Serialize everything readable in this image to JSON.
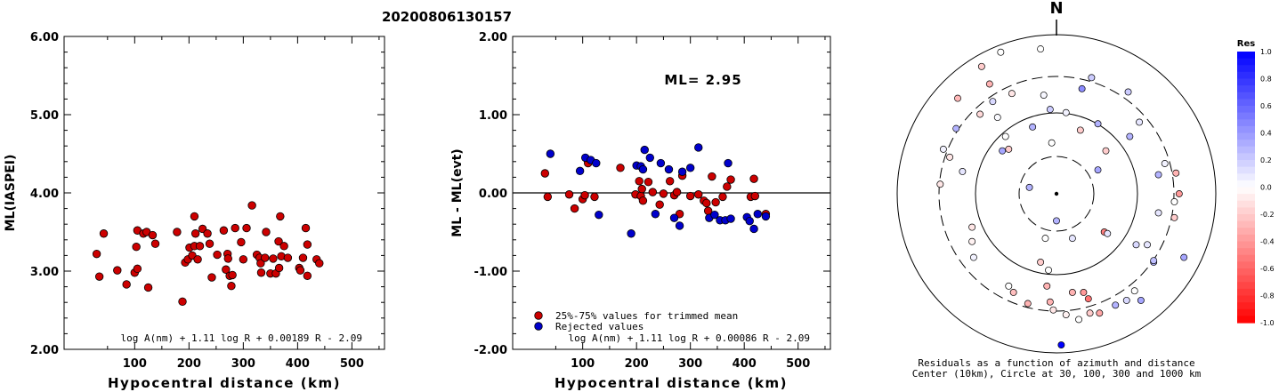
{
  "title": "20200806130157",
  "colors": {
    "trimmed": "#cc0000",
    "rejected": "#0000cc"
  },
  "chart_data": [
    {
      "type": "scatter",
      "id": "ml-vs-distance",
      "ylabel": "ML(IASPEI)",
      "xlabel": "Hypocentral distance (km)",
      "xlim": [
        -30,
        560
      ],
      "ylim": [
        2.0,
        6.0
      ],
      "x_ticks": [
        "100",
        "200",
        "300",
        "400",
        "500"
      ],
      "y_ticks": [
        "2.00",
        "3.00",
        "4.00",
        "5.00",
        "6.00"
      ],
      "formula": "log A(nm) + 1.11 log R + 0.00189 R - 2.09",
      "points": [
        [
          30,
          3.22
        ],
        [
          35,
          2.93
        ],
        [
          43,
          3.48
        ],
        [
          68,
          3.01
        ],
        [
          85,
          2.83
        ],
        [
          100,
          2.98
        ],
        [
          103,
          3.31
        ],
        [
          105,
          3.03
        ],
        [
          105,
          3.52
        ],
        [
          116,
          3.48
        ],
        [
          122,
          3.5
        ],
        [
          125,
          2.79
        ],
        [
          133,
          3.46
        ],
        [
          138,
          3.35
        ],
        [
          178,
          3.5
        ],
        [
          188,
          2.61
        ],
        [
          193,
          3.11
        ],
        [
          198,
          3.15
        ],
        [
          201,
          3.3
        ],
        [
          206,
          3.2
        ],
        [
          210,
          3.32
        ],
        [
          210,
          3.7
        ],
        [
          212,
          3.48
        ],
        [
          216,
          3.15
        ],
        [
          220,
          3.32
        ],
        [
          225,
          3.54
        ],
        [
          234,
          3.48
        ],
        [
          238,
          3.35
        ],
        [
          242,
          2.92
        ],
        [
          252,
          3.21
        ],
        [
          264,
          3.52
        ],
        [
          268,
          3.02
        ],
        [
          271,
          3.22
        ],
        [
          272,
          3.16
        ],
        [
          275,
          2.94
        ],
        [
          278,
          2.81
        ],
        [
          280,
          2.95
        ],
        [
          285,
          3.55
        ],
        [
          296,
          3.37
        ],
        [
          300,
          3.15
        ],
        [
          306,
          3.55
        ],
        [
          316,
          3.84
        ],
        [
          325,
          3.21
        ],
        [
          330,
          3.17
        ],
        [
          332,
          3.1
        ],
        [
          333,
          2.98
        ],
        [
          340,
          3.17
        ],
        [
          342,
          3.5
        ],
        [
          350,
          2.97
        ],
        [
          355,
          3.16
        ],
        [
          360,
          2.97
        ],
        [
          365,
          3.38
        ],
        [
          366,
          3.04
        ],
        [
          368,
          3.7
        ],
        [
          370,
          3.19
        ],
        [
          375,
          3.32
        ],
        [
          382,
          3.17
        ],
        [
          403,
          3.04
        ],
        [
          405,
          3.01
        ],
        [
          410,
          3.17
        ],
        [
          415,
          3.55
        ],
        [
          418,
          3.34
        ],
        [
          418,
          2.94
        ],
        [
          435,
          3.15
        ],
        [
          440,
          3.1
        ]
      ]
    },
    {
      "type": "scatter",
      "id": "residual-vs-distance",
      "ylabel": "ML - ML(evt)",
      "xlabel": "Hypocentral distance (km)",
      "xlim": [
        -30,
        560
      ],
      "ylim": [
        -2.0,
        2.0
      ],
      "x_ticks": [
        "100",
        "200",
        "300",
        "400",
        "500"
      ],
      "y_ticks": [
        "-2.00",
        "-1.00",
        "0.00",
        "1.00",
        "2.00"
      ],
      "annotation": "ML= 2.95",
      "legend": [
        "25%-75% values for trimmed mean",
        "Rejected values"
      ],
      "formula": "log A(nm) + 1.11 log R + 0.00086 R - 2.09",
      "trimmed": [
        [
          30,
          0.25
        ],
        [
          35,
          -0.05
        ],
        [
          75,
          -0.02
        ],
        [
          85,
          -0.2
        ],
        [
          100,
          -0.08
        ],
        [
          104,
          -0.03
        ],
        [
          110,
          0.38
        ],
        [
          122,
          -0.05
        ],
        [
          170,
          0.32
        ],
        [
          198,
          -0.02
        ],
        [
          205,
          0.15
        ],
        [
          208,
          -0.04
        ],
        [
          210,
          0.05
        ],
        [
          212,
          -0.1
        ],
        [
          222,
          0.14
        ],
        [
          230,
          0.01
        ],
        [
          243,
          -0.15
        ],
        [
          250,
          -0.01
        ],
        [
          262,
          0.15
        ],
        [
          270,
          -0.03
        ],
        [
          275,
          0.01
        ],
        [
          280,
          -0.27
        ],
        [
          285,
          0.22
        ],
        [
          300,
          -0.04
        ],
        [
          315,
          -0.02
        ],
        [
          325,
          -0.1
        ],
        [
          330,
          -0.13
        ],
        [
          333,
          -0.23
        ],
        [
          340,
          0.21
        ],
        [
          347,
          -0.12
        ],
        [
          360,
          -0.05
        ],
        [
          368,
          0.08
        ],
        [
          375,
          0.17
        ],
        [
          412,
          -0.05
        ],
        [
          418,
          0.18
        ],
        [
          420,
          -0.04
        ],
        [
          440,
          -0.27
        ]
      ],
      "rejected": [
        [
          40,
          0.5
        ],
        [
          95,
          0.28
        ],
        [
          105,
          0.45
        ],
        [
          115,
          0.42
        ],
        [
          125,
          0.38
        ],
        [
          130,
          -0.28
        ],
        [
          190,
          -0.52
        ],
        [
          200,
          0.35
        ],
        [
          208,
          0.34
        ],
        [
          212,
          0.3
        ],
        [
          215,
          0.55
        ],
        [
          225,
          0.45
        ],
        [
          235,
          -0.27
        ],
        [
          245,
          0.38
        ],
        [
          260,
          0.3
        ],
        [
          270,
          -0.32
        ],
        [
          280,
          -0.42
        ],
        [
          285,
          0.27
        ],
        [
          300,
          0.32
        ],
        [
          315,
          0.58
        ],
        [
          335,
          -0.32
        ],
        [
          345,
          -0.28
        ],
        [
          355,
          -0.35
        ],
        [
          365,
          -0.35
        ],
        [
          370,
          0.38
        ],
        [
          375,
          -0.33
        ],
        [
          405,
          -0.31
        ],
        [
          410,
          -0.36
        ],
        [
          418,
          -0.46
        ],
        [
          425,
          -0.27
        ],
        [
          440,
          -0.3
        ]
      ]
    },
    {
      "type": "scatter",
      "id": "residual-map",
      "north_label": "N",
      "caption_1": "Residuals as a function of azimuth and distance",
      "caption_2": "Center (10km), Circle at 30, 100, 300 and 1000 km",
      "colorbar_title": "Res",
      "colorbar_ticks": [
        "1.0",
        "0.8",
        "0.6",
        "0.4",
        "0.2",
        "0.0",
        "-0.2",
        "-0.4",
        "-0.6",
        "-0.8",
        "-1.0"
      ],
      "rings_km": [
        30,
        100,
        300,
        1000
      ],
      "points_xy_residual": [
        [
          0.52,
          0.45,
          0.1
        ],
        [
          -0.28,
          0.63,
          -0.1
        ],
        [
          -0.1,
          0.91,
          0.0
        ],
        [
          -0.35,
          0.89,
          0.0
        ],
        [
          -0.47,
          0.8,
          -0.2
        ],
        [
          -0.48,
          0.5,
          -0.15
        ],
        [
          -0.62,
          0.6,
          -0.28
        ],
        [
          -0.67,
          0.23,
          -0.1
        ],
        [
          -0.59,
          0.14,
          0.1
        ],
        [
          -0.37,
          0.48,
          0.02
        ],
        [
          -0.4,
          0.58,
          0.15
        ],
        [
          -0.42,
          0.69,
          -0.3
        ],
        [
          -0.71,
          0.28,
          0.05
        ],
        [
          -0.3,
          0.28,
          -0.2
        ],
        [
          -0.08,
          0.62,
          0.03
        ],
        [
          -0.04,
          0.53,
          0.2
        ],
        [
          -0.15,
          0.42,
          0.3
        ],
        [
          0.16,
          0.66,
          0.45
        ],
        [
          0.06,
          0.51,
          0.05
        ],
        [
          -0.03,
          0.32,
          0.0
        ],
        [
          -0.32,
          0.36,
          0.0
        ],
        [
          -0.34,
          0.27,
          0.35
        ],
        [
          -0.63,
          0.41,
          0.3
        ],
        [
          -0.73,
          0.06,
          -0.1
        ],
        [
          0.22,
          0.73,
          0.2
        ],
        [
          0.45,
          0.64,
          0.2
        ],
        [
          -0.17,
          0.04,
          0.3
        ],
        [
          0.0,
          -0.17,
          0.3
        ],
        [
          0.1,
          -0.28,
          0.1
        ],
        [
          -0.07,
          -0.28,
          0.0
        ],
        [
          0.15,
          0.4,
          -0.2
        ],
        [
          0.26,
          0.44,
          0.3
        ],
        [
          0.31,
          0.27,
          -0.2
        ],
        [
          0.26,
          0.15,
          0.35
        ],
        [
          0.3,
          -0.24,
          -0.5
        ],
        [
          0.46,
          0.36,
          0.3
        ],
        [
          -0.05,
          -0.48,
          0.0
        ],
        [
          -0.1,
          -0.43,
          -0.2
        ],
        [
          -0.52,
          -0.4,
          0.05
        ],
        [
          0.32,
          -0.25,
          0.1
        ],
        [
          -0.53,
          -0.21,
          -0.1
        ],
        [
          -0.53,
          -0.3,
          -0.05
        ],
        [
          -0.04,
          -0.68,
          -0.3
        ],
        [
          -0.02,
          -0.73,
          -0.1
        ],
        [
          0.06,
          -0.76,
          -0.05
        ],
        [
          0.14,
          -0.79,
          0.0
        ],
        [
          0.21,
          -0.75,
          -0.2
        ],
        [
          0.27,
          -0.75,
          -0.35
        ],
        [
          0.37,
          -0.7,
          0.3
        ],
        [
          0.44,
          -0.67,
          0.15
        ],
        [
          0.49,
          -0.61,
          0.0
        ],
        [
          0.53,
          -0.67,
          0.35
        ],
        [
          0.61,
          -0.43,
          0.3
        ],
        [
          0.57,
          -0.32,
          0.1
        ],
        [
          0.5,
          -0.32,
          0.15
        ],
        [
          0.64,
          0.12,
          0.3
        ],
        [
          0.68,
          0.19,
          0.05
        ],
        [
          0.75,
          0.13,
          -0.3
        ],
        [
          0.77,
          0.0,
          -0.4
        ],
        [
          0.74,
          -0.05,
          0.0
        ],
        [
          0.64,
          -0.12,
          0.1
        ],
        [
          0.74,
          -0.15,
          -0.2
        ],
        [
          0.61,
          -0.42,
          0.25
        ],
        [
          0.8,
          -0.4,
          0.35
        ],
        [
          0.03,
          -0.95,
          1.0
        ],
        [
          -0.18,
          -0.69,
          -0.3
        ],
        [
          -0.27,
          -0.62,
          -0.25
        ],
        [
          -0.06,
          -0.58,
          -0.3
        ],
        [
          0.17,
          -0.62,
          -0.4
        ],
        [
          0.2,
          -0.66,
          -0.55
        ],
        [
          -0.3,
          -0.58,
          0.0
        ],
        [
          0.1,
          -0.62,
          -0.3
        ]
      ]
    }
  ]
}
